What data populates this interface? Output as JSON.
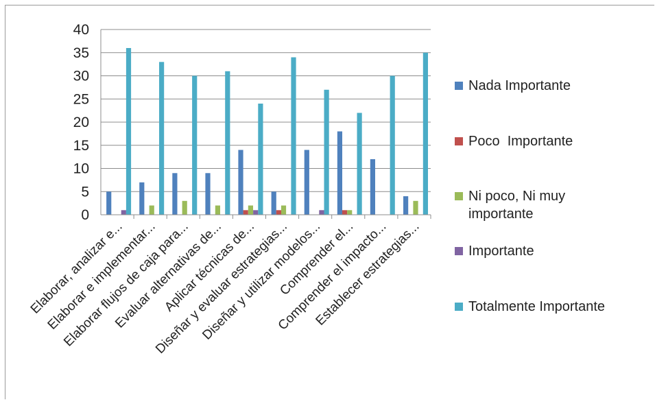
{
  "chart_data": {
    "type": "bar",
    "categories": [
      "Elaborar, analizar e...",
      "Elaborar e implementar...",
      "Elaborar flujos de caja para...",
      "Evaluar alternativas de...",
      "Aplicar técnicas de...",
      "Diseñar y evaluar estrategias...",
      "Diseñar y utilizar modelos...",
      "Comprender el...",
      "Comprender el impacto...",
      "Establecer estrategias..."
    ],
    "series": [
      {
        "name": "Nada Importante",
        "color": "#4f81bd",
        "values": [
          5,
          7,
          9,
          9,
          14,
          5,
          14,
          18,
          12,
          4
        ]
      },
      {
        "name": "Poco  Importante",
        "color": "#c0504d",
        "values": [
          0,
          0,
          0,
          0,
          1,
          1,
          0,
          1,
          0,
          0
        ]
      },
      {
        "name": "Ni poco, Ni muy importante",
        "color": "#9bbb59",
        "values": [
          0,
          2,
          3,
          2,
          2,
          2,
          0,
          1,
          0,
          3
        ]
      },
      {
        "name": "Importante",
        "color": "#8064a2",
        "values": [
          1,
          0,
          0,
          0,
          1,
          0,
          1,
          0,
          0,
          0
        ]
      },
      {
        "name": "Totalmente Importante",
        "color": "#4bacc6",
        "values": [
          36,
          33,
          30,
          31,
          24,
          34,
          27,
          22,
          30,
          35
        ]
      }
    ],
    "ylim": [
      0,
      40
    ],
    "yticks": [
      "0",
      "5",
      "10",
      "15",
      "20",
      "25",
      "30",
      "35",
      "40"
    ],
    "grid": true,
    "legend_position": "right"
  }
}
